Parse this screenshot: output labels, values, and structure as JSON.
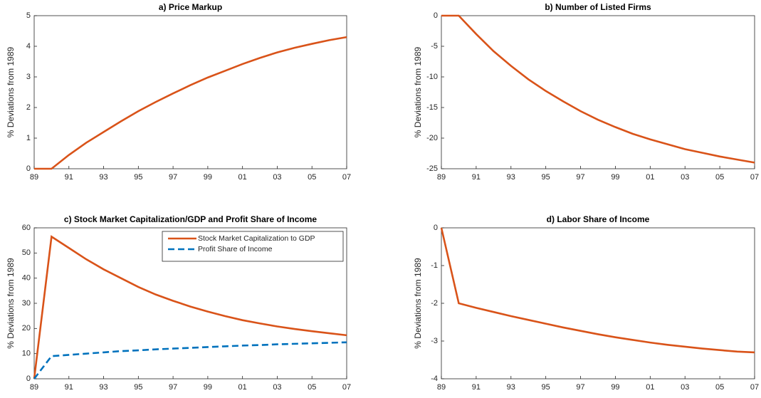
{
  "chart_data": [
    {
      "type": "line",
      "title": "a) Price Markup",
      "ylabel": "% Deviations from 1989",
      "categories": [
        "89",
        null,
        "91",
        null,
        "93",
        null,
        "95",
        null,
        "97",
        null,
        "99",
        null,
        "01",
        null,
        "03",
        null,
        "05",
        null,
        "07"
      ],
      "series": [
        {
          "color": "#d95319",
          "values": [
            0,
            0,
            0.45,
            0.85,
            1.2,
            1.55,
            1.88,
            2.18,
            2.46,
            2.73,
            2.98,
            3.2,
            3.42,
            3.62,
            3.8,
            3.95,
            4.08,
            4.2,
            4.3
          ]
        }
      ],
      "ylim": [
        0,
        5
      ],
      "yticks": [
        0,
        1,
        2,
        3,
        4,
        5
      ]
    },
    {
      "type": "line",
      "title": "b) Number of Listed Firms",
      "ylabel": "% Deviations from 1989",
      "categories": [
        "89",
        null,
        "91",
        null,
        "93",
        null,
        "95",
        null,
        "97",
        null,
        "99",
        null,
        "01",
        null,
        "03",
        null,
        "05",
        null,
        "07"
      ],
      "series": [
        {
          "color": "#d95319",
          "values": [
            0,
            0,
            -3,
            -5.8,
            -8.2,
            -10.4,
            -12.3,
            -14,
            -15.6,
            -17,
            -18.2,
            -19.3,
            -20.2,
            -21,
            -21.8,
            -22.4,
            -23,
            -23.5,
            -24
          ]
        }
      ],
      "ylim": [
        -25,
        0
      ],
      "yticks": [
        -25,
        -20,
        -15,
        -10,
        -5,
        0
      ]
    },
    {
      "type": "line",
      "title": "c) Stock Market Capitalization/GDP and Profit Share of Income",
      "ylabel": "% Deviations from 1989",
      "categories": [
        "89",
        null,
        "91",
        null,
        "93",
        null,
        "95",
        null,
        "97",
        null,
        "99",
        null,
        "01",
        null,
        "03",
        null,
        "05",
        null,
        "07"
      ],
      "series": [
        {
          "name": "Stock Market Capitalization to GDP",
          "color": "#d95319",
          "values": [
            0,
            56.5,
            52,
            47.5,
            43.5,
            40,
            36.5,
            33.5,
            31,
            28.7,
            26.7,
            24.9,
            23.3,
            22,
            20.8,
            19.8,
            18.9,
            18.1,
            17.3
          ]
        },
        {
          "name": "Profit Share of Income",
          "color": "#0072bd",
          "dashed": true,
          "values": [
            0,
            9,
            9.5,
            10,
            10.5,
            11,
            11.3,
            11.7,
            12,
            12.3,
            12.6,
            12.9,
            13.2,
            13.4,
            13.7,
            13.9,
            14.1,
            14.3,
            14.5
          ]
        }
      ],
      "legend": "upper right",
      "ylim": [
        0,
        60
      ],
      "yticks": [
        0,
        10,
        20,
        30,
        40,
        50,
        60
      ]
    },
    {
      "type": "line",
      "title": "d) Labor Share of Income",
      "ylabel": "% Deviations from 1989",
      "categories": [
        "89",
        null,
        "91",
        null,
        "93",
        null,
        "95",
        null,
        "97",
        null,
        "99",
        null,
        "01",
        null,
        "03",
        null,
        "05",
        null,
        "07"
      ],
      "series": [
        {
          "color": "#d95319",
          "values": [
            0,
            -2,
            -2.12,
            -2.23,
            -2.34,
            -2.44,
            -2.54,
            -2.64,
            -2.73,
            -2.82,
            -2.9,
            -2.97,
            -3.04,
            -3.1,
            -3.15,
            -3.2,
            -3.24,
            -3.28,
            -3.3
          ]
        }
      ],
      "ylim": [
        -4,
        0
      ],
      "yticks": [
        -4,
        -3,
        -2,
        -1,
        0
      ]
    }
  ]
}
